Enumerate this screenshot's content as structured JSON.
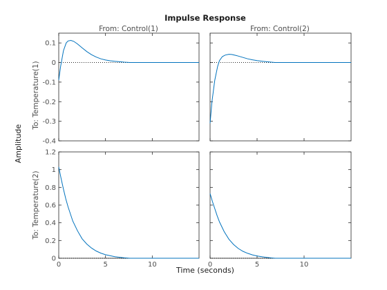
{
  "chart_data": {
    "type": "line",
    "title": "Impulse Response",
    "xlabel": "Time (seconds)",
    "ylabel": "Amplitude",
    "grid": false,
    "legend": "none",
    "series_color": "#0072bd",
    "zero_line_color": "#000000",
    "x_range": [
      0,
      15
    ],
    "x_ticks": [
      0,
      5,
      10
    ],
    "columns": [
      "From: Control(1)",
      "From: Control(2)"
    ],
    "rows": [
      {
        "label": "To: Temperature(1)",
        "ylim": [
          -0.4,
          0.15
        ],
        "y_ticks": [
          -0.4,
          -0.3,
          -0.2,
          -0.1,
          0,
          0.1
        ],
        "y_tick_labels": [
          "-0.4",
          "-0.3",
          "-0.2",
          "-0.1",
          "0",
          "0.1"
        ]
      },
      {
        "label": "To: Temperature(2)",
        "ylim": [
          0,
          1.2
        ],
        "y_ticks": [
          0,
          0.2,
          0.4,
          0.6,
          0.8,
          1,
          1.2
        ],
        "y_tick_labels": [
          "0",
          "0.2",
          "0.4",
          "0.6",
          "0.8",
          "1",
          "1.2"
        ]
      }
    ],
    "x_tick_labels": [
      "0",
      "5",
      "10"
    ],
    "series": [
      {
        "row": 0,
        "col": 0,
        "end_x": 7.6,
        "x": [
          0,
          0.2,
          0.5,
          0.8,
          1.0,
          1.3,
          1.6,
          2.0,
          2.5,
          3.0,
          3.5,
          4.0,
          4.5,
          5.0,
          5.5,
          6.0,
          6.5,
          7.0,
          7.6
        ],
        "y": [
          -0.09,
          -0.02,
          0.06,
          0.1,
          0.11,
          0.113,
          0.108,
          0.095,
          0.075,
          0.056,
          0.04,
          0.028,
          0.019,
          0.013,
          0.009,
          0.006,
          0.004,
          0.002,
          0
        ]
      },
      {
        "row": 0,
        "col": 1,
        "end_x": 6.9,
        "x": [
          0,
          0.2,
          0.5,
          0.8,
          1.0,
          1.3,
          1.6,
          2.0,
          2.3,
          2.7,
          3.0,
          3.5,
          4.0,
          4.5,
          5.0,
          5.5,
          6.0,
          6.5,
          6.9
        ],
        "y": [
          -0.31,
          -0.2,
          -0.09,
          -0.02,
          0.01,
          0.03,
          0.038,
          0.042,
          0.041,
          0.037,
          0.033,
          0.026,
          0.019,
          0.014,
          0.01,
          0.007,
          0.004,
          0.002,
          0
        ]
      },
      {
        "row": 1,
        "col": 0,
        "end_x": 7.6,
        "x": [
          0,
          0.25,
          0.5,
          0.75,
          1.0,
          1.5,
          2.0,
          2.5,
          3.0,
          3.5,
          4.0,
          4.5,
          5.0,
          5.5,
          6.0,
          6.5,
          7.0,
          7.6
        ],
        "y": [
          1.03,
          0.9,
          0.78,
          0.67,
          0.58,
          0.42,
          0.31,
          0.22,
          0.16,
          0.115,
          0.082,
          0.058,
          0.04,
          0.028,
          0.018,
          0.011,
          0.005,
          0
        ]
      },
      {
        "row": 1,
        "col": 1,
        "end_x": 6.9,
        "x": [
          0,
          0.25,
          0.5,
          0.75,
          1.0,
          1.5,
          2.0,
          2.5,
          3.0,
          3.5,
          4.0,
          4.5,
          5.0,
          5.5,
          6.0,
          6.5,
          6.9
        ],
        "y": [
          0.73,
          0.64,
          0.56,
          0.48,
          0.41,
          0.3,
          0.215,
          0.155,
          0.11,
          0.078,
          0.055,
          0.038,
          0.026,
          0.017,
          0.01,
          0.004,
          0
        ]
      }
    ]
  }
}
